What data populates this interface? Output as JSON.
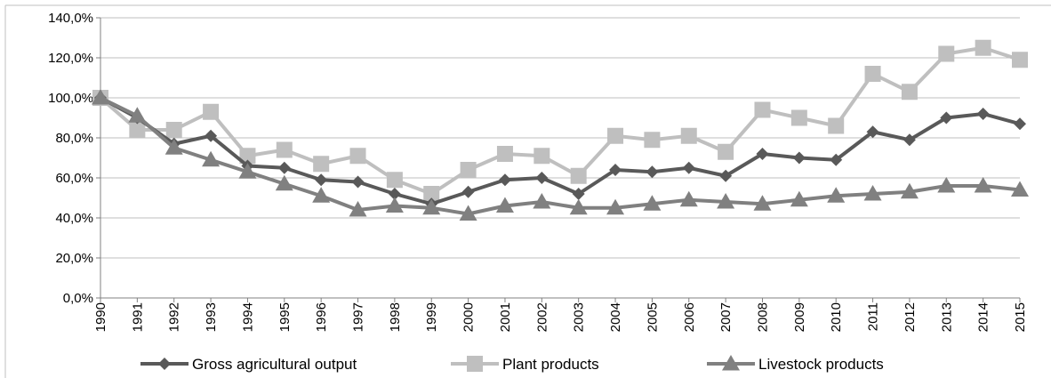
{
  "chart_data": {
    "type": "line",
    "categories": [
      "1990",
      "1991",
      "1992",
      "1993",
      "1994",
      "1995",
      "1996",
      "1997",
      "1998",
      "1999",
      "2000",
      "2001",
      "2002",
      "2003",
      "2004",
      "2005",
      "2006",
      "2007",
      "2008",
      "2009",
      "2010",
      "2011",
      "2012",
      "2013",
      "2014",
      "2015"
    ],
    "y_ticks": [
      "0,0%",
      "20,0%",
      "40,0%",
      "60,0%",
      "80,0%",
      "100,0%",
      "120,0%",
      "140,0%"
    ],
    "ylim": [
      0,
      140
    ],
    "grid": true,
    "legend_position": "bottom",
    "series": [
      {
        "name": "Gross agricultural output",
        "color": "#595959",
        "marker": "diamond",
        "values": [
          100,
          90,
          77,
          81,
          66,
          65,
          59,
          58,
          52,
          47,
          53,
          59,
          60,
          52,
          64,
          63,
          65,
          61,
          72,
          70,
          69,
          83,
          79,
          90,
          92,
          87
        ]
      },
      {
        "name": "Plant products",
        "color": "#bfbfbf",
        "marker": "square",
        "values": [
          100,
          84,
          84,
          93,
          71,
          74,
          67,
          71,
          59,
          52,
          64,
          72,
          71,
          61,
          81,
          79,
          81,
          73,
          94,
          90,
          86,
          112,
          103,
          122,
          125,
          119
        ]
      },
      {
        "name": "Livestock products",
        "color": "#808080",
        "marker": "triangle",
        "values": [
          100,
          91,
          75,
          69,
          63,
          57,
          51,
          44,
          46,
          45,
          42,
          46,
          48,
          45,
          45,
          47,
          49,
          48,
          47,
          49,
          51,
          52,
          53,
          56,
          56,
          54
        ]
      }
    ]
  }
}
